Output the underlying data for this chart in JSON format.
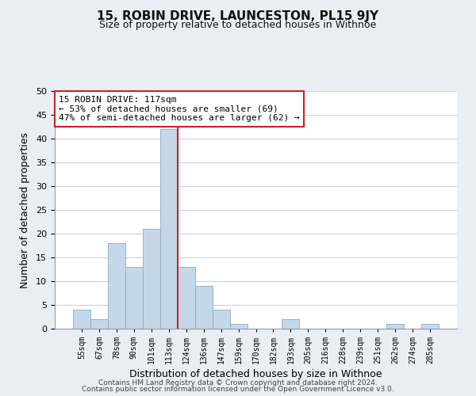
{
  "title": "15, ROBIN DRIVE, LAUNCESTON, PL15 9JY",
  "subtitle": "Size of property relative to detached houses in Withnoe",
  "xlabel": "Distribution of detached houses by size in Withnoe",
  "ylabel": "Number of detached properties",
  "bar_labels": [
    "55sqm",
    "67sqm",
    "78sqm",
    "90sqm",
    "101sqm",
    "113sqm",
    "124sqm",
    "136sqm",
    "147sqm",
    "159sqm",
    "170sqm",
    "182sqm",
    "193sqm",
    "205sqm",
    "216sqm",
    "228sqm",
    "239sqm",
    "251sqm",
    "262sqm",
    "274sqm",
    "285sqm"
  ],
  "bar_values": [
    4,
    2,
    18,
    13,
    21,
    42,
    13,
    9,
    4,
    1,
    0,
    0,
    2,
    0,
    0,
    0,
    0,
    0,
    1,
    0,
    1
  ],
  "bar_color": "#c5d8ea",
  "bar_edge_color": "#8baabf",
  "highlight_line_color": "#cc2222",
  "highlight_bar_index": 5,
  "ylim": [
    0,
    50
  ],
  "yticks": [
    0,
    5,
    10,
    15,
    20,
    25,
    30,
    35,
    40,
    45,
    50
  ],
  "annotation_line1": "15 ROBIN DRIVE: 117sqm",
  "annotation_line2": "← 53% of detached houses are smaller (69)",
  "annotation_line3": "47% of semi-detached houses are larger (62) →",
  "footer_line1": "Contains HM Land Registry data © Crown copyright and database right 2024.",
  "footer_line2": "Contains public sector information licensed under the Open Government Licence v3.0.",
  "background_color": "#e8eef4",
  "plot_bg_color": "#ffffff",
  "grid_color": "#c8d4de"
}
